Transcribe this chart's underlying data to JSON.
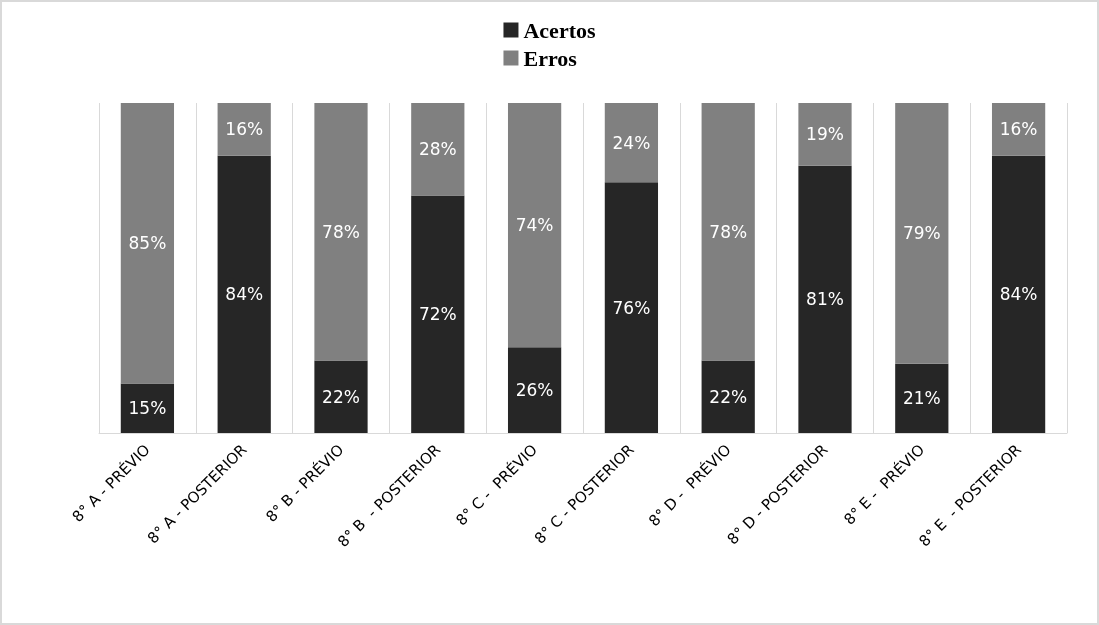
{
  "chart_data": {
    "type": "bar",
    "stacked": true,
    "categories": [
      "8° A - PRÉVIO",
      "8° A - POSTERIOR",
      "8° B - PRÉVIO",
      "8° B  - POSTERIOR",
      "8° C -  PRÉVIO",
      "8° C - POSTERIOR",
      "8° D -  PRÉVIO",
      "8° D - POSTERIOR",
      "8° E -  PRÉVIO",
      "8° E  - POSTERIOR"
    ],
    "series": [
      {
        "name": "Acertos",
        "color": "#262626",
        "values": [
          15,
          84,
          22,
          72,
          26,
          76,
          22,
          81,
          21,
          84
        ],
        "value_labels": [
          "15%",
          "84%",
          "22%",
          "72%",
          "26%",
          "76%",
          "22%",
          "81%",
          "21%",
          "84%"
        ]
      },
      {
        "name": "Erros",
        "color": "#808080",
        "values": [
          85,
          16,
          78,
          28,
          74,
          24,
          78,
          19,
          79,
          16
        ],
        "value_labels": [
          "85%",
          "16%",
          "78%",
          "28%",
          "74%",
          "24%",
          "78%",
          "19%",
          "79%",
          "16%"
        ]
      }
    ],
    "ylim": [
      0,
      100
    ],
    "legend": "top",
    "grid": "x",
    "tick_labels": "x"
  }
}
